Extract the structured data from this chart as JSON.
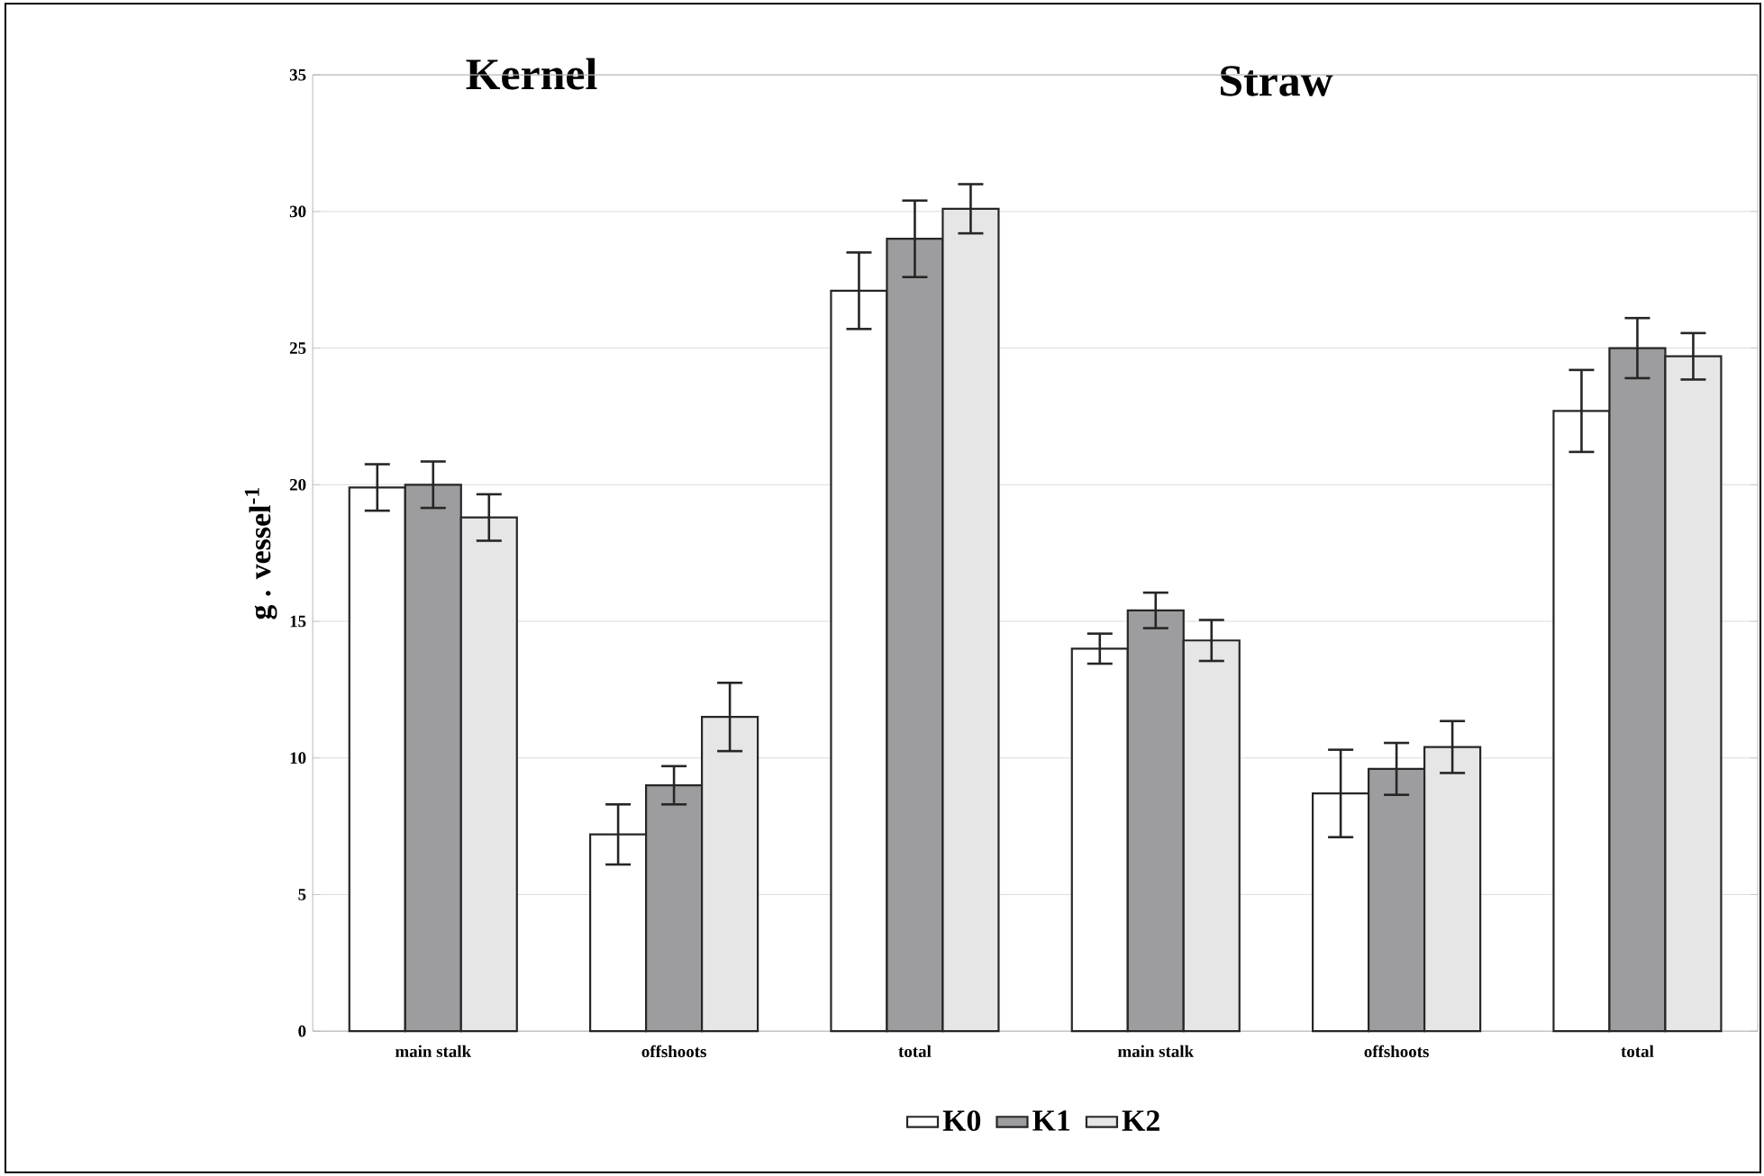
{
  "chart_data": {
    "type": "bar",
    "annotations": [
      "Kernel",
      "Straw"
    ],
    "ylabel": "g . vessel$^{-1}$",
    "categories": [
      "main stalk",
      "offshoots",
      "total",
      "main stalk",
      "offshoots",
      "total"
    ],
    "series": [
      {
        "name": "K0",
        "color": "#ffffff",
        "values": [
          19.9,
          7.2,
          27.1,
          14.0,
          8.7,
          22.7
        ],
        "errors": [
          0.85,
          1.1,
          1.4,
          0.55,
          1.6,
          1.5
        ]
      },
      {
        "name": "K1",
        "color": "#9d9d9f",
        "values": [
          20.0,
          9.0,
          29.0,
          15.4,
          9.6,
          25.0
        ],
        "errors": [
          0.85,
          0.7,
          1.4,
          0.65,
          0.95,
          1.1
        ]
      },
      {
        "name": "K2",
        "color": "#e6e6e6",
        "values": [
          18.8,
          11.5,
          30.1,
          14.3,
          10.4,
          24.7
        ],
        "errors": [
          0.85,
          1.25,
          0.9,
          0.75,
          0.95,
          0.85
        ]
      }
    ],
    "ylim": [
      0,
      35
    ],
    "yticks": [
      0,
      5,
      10,
      15,
      20,
      25,
      30,
      35
    ],
    "grid": "y",
    "legend": "bottom"
  }
}
